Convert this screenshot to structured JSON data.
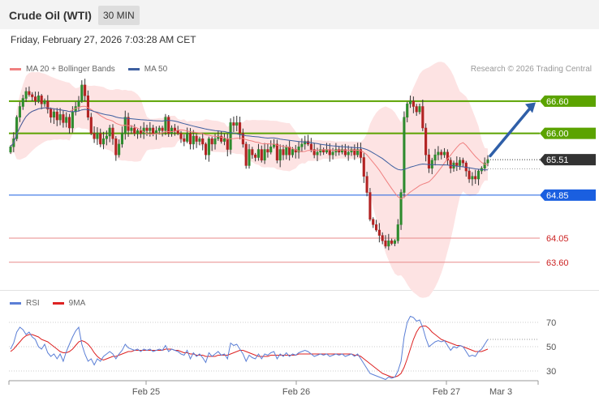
{
  "header": {
    "title": "Crude Oil (WTI)",
    "timeframe": "30 MIN"
  },
  "datetime": "Friday, February 27, 2026 7:03:28 AM CET",
  "legend": {
    "items": [
      {
        "label": "MA 20 + Bollinger Bands",
        "color": "#f08080"
      },
      {
        "label": "MA 50",
        "color": "#3d5fa0"
      }
    ],
    "credit": "Research © 2026 Trading Central"
  },
  "colors": {
    "up": "#2e8b2e",
    "down": "#b22222",
    "bollinger_fill": "#fde3e3",
    "ma20": "#f08080",
    "ma50": "#3d5fa0",
    "resistance": "#5ba300",
    "pivot": "#1a5fe0",
    "support": "#e88a8a",
    "arrow": "#2f5fa8",
    "rsi": "#5b7fd6",
    "rsi_ma": "#dd2222"
  },
  "chart_data": [
    {
      "type": "candlestick",
      "ylim": [
        63.25,
        67.05
      ],
      "levels": [
        {
          "value": 66.6,
          "label": "66.60",
          "kind": "resistance"
        },
        {
          "value": 66.0,
          "label": "66.00",
          "kind": "resistance"
        },
        {
          "value": 65.51,
          "label": "65.51",
          "kind": "last"
        },
        {
          "value": 64.85,
          "label": "64.85",
          "kind": "pivot"
        },
        {
          "value": 64.05,
          "label": "64.05",
          "kind": "support"
        },
        {
          "value": 63.6,
          "label": "63.60",
          "kind": "support"
        }
      ],
      "x_ticks": [
        "Feb 25",
        "Feb 26",
        "Feb 27",
        "Mar 3"
      ],
      "close": [
        65.75,
        65.9,
        66.3,
        66.5,
        66.65,
        66.78,
        66.72,
        66.68,
        66.6,
        66.7,
        66.55,
        66.6,
        66.45,
        66.3,
        66.4,
        66.25,
        66.35,
        66.2,
        66.3,
        66.1,
        66.4,
        66.5,
        66.6,
        66.9,
        66.7,
        66.3,
        66.0,
        65.9,
        66.0,
        65.8,
        65.9,
        65.95,
        66.1,
        65.9,
        65.6,
        65.8,
        66.0,
        66.3,
        66.05,
        66.1,
        66.0,
        66.05,
        66.0,
        66.1,
        66.05,
        66.1,
        66.0,
        66.05,
        66.1,
        66.05,
        66.3,
        66.0,
        66.1,
        66.05,
        66.0,
        65.9,
        65.85,
        66.0,
        65.8,
        65.95,
        65.85,
        65.9,
        65.8,
        65.6,
        65.9,
        65.8,
        65.9,
        65.95,
        65.85,
        65.9,
        65.7,
        66.2,
        66.15,
        66.2,
        66.0,
        65.8,
        65.4,
        65.7,
        65.6,
        65.55,
        65.7,
        65.5,
        65.7,
        65.65,
        65.75,
        65.8,
        65.5,
        65.7,
        65.6,
        65.75,
        65.6,
        65.7,
        65.65,
        65.75,
        65.8,
        65.85,
        65.8,
        65.7,
        65.6,
        65.65,
        65.7,
        65.65,
        65.7,
        65.6,
        65.65,
        65.7,
        65.65,
        65.7,
        65.6,
        65.65,
        65.7,
        65.6,
        65.7,
        65.55,
        65.2,
        64.9,
        64.4,
        64.3,
        64.2,
        64.1,
        64.0,
        63.9,
        64.0,
        63.95,
        64.0,
        64.3,
        64.9,
        66.3,
        66.55,
        66.6,
        66.5,
        66.4,
        66.5,
        66.1,
        65.6,
        65.35,
        65.5,
        65.6,
        65.65,
        65.6,
        65.65,
        65.5,
        65.35,
        65.45,
        65.4,
        65.5,
        65.45,
        65.3,
        65.15,
        65.2,
        65.15,
        65.3,
        65.35,
        65.45,
        65.51
      ],
      "rsi": {
        "ylim": [
          22,
          82
        ],
        "levels": [
          70,
          50,
          30
        ],
        "last": 56,
        "rsi_values": [
          48,
          53,
          62,
          66,
          64,
          60,
          62,
          58,
          56,
          50,
          48,
          52,
          45,
          42,
          44,
          40,
          44,
          38,
          46,
          52,
          58,
          63,
          66,
          52,
          44,
          38,
          40,
          35,
          40,
          38,
          42,
          44,
          46,
          44,
          40,
          44,
          47,
          52,
          49,
          48,
          47,
          48,
          46,
          48,
          47,
          48,
          46,
          47,
          48,
          47,
          51,
          46,
          48,
          47,
          46,
          44,
          43,
          47,
          40,
          45,
          42,
          44,
          41,
          37,
          45,
          42,
          44,
          46,
          43,
          44,
          40,
          53,
          51,
          52,
          48,
          44,
          38,
          43,
          41,
          40,
          44,
          40,
          44,
          43,
          45,
          46,
          40,
          44,
          42,
          45,
          42,
          44,
          43,
          45,
          46,
          47,
          46,
          44,
          42,
          43,
          44,
          43,
          44,
          42,
          43,
          44,
          43,
          44,
          42,
          43,
          44,
          42,
          44,
          40,
          36,
          32,
          28,
          27,
          26,
          25,
          24,
          23,
          25,
          24,
          25,
          30,
          38,
          58,
          70,
          75,
          74,
          71,
          72,
          66,
          57,
          50,
          52,
          54,
          55,
          54,
          55,
          51,
          47,
          50,
          49,
          51,
          50,
          46,
          42,
          43,
          42,
          46,
          48,
          52,
          56
        ],
        "ma_values": [
          46,
          48,
          51,
          54,
          57,
          59,
          60,
          60,
          59,
          58,
          56,
          55,
          54,
          52,
          50,
          48,
          46,
          45,
          45,
          46,
          48,
          51,
          54,
          55,
          54,
          52,
          49,
          45,
          42,
          40,
          39,
          40,
          41,
          42,
          42,
          43,
          44,
          45,
          46,
          46,
          47,
          47,
          47,
          47,
          47,
          47,
          47,
          47,
          47,
          47,
          48,
          48,
          48,
          47,
          47,
          46,
          45,
          45,
          44,
          44,
          43,
          43,
          43,
          42,
          42,
          42,
          42,
          43,
          43,
          43,
          43,
          44,
          45,
          46,
          47,
          47,
          46,
          45,
          44,
          43,
          42,
          42,
          42,
          42,
          43,
          43,
          43,
          43,
          43,
          43,
          43,
          43,
          43,
          44,
          44,
          44,
          44,
          44,
          44,
          44,
          44,
          44,
          44,
          44,
          44,
          44,
          44,
          44,
          44,
          44,
          44,
          43,
          43,
          42,
          40,
          38,
          36,
          34,
          32,
          30,
          28,
          27,
          26,
          25,
          25,
          26,
          28,
          33,
          40,
          48,
          56,
          62,
          66,
          67,
          67,
          65,
          62,
          60,
          58,
          56,
          55,
          54,
          53,
          52,
          51,
          51,
          50,
          49,
          48,
          47,
          46,
          46,
          46,
          47,
          48
        ]
      }
    }
  ]
}
